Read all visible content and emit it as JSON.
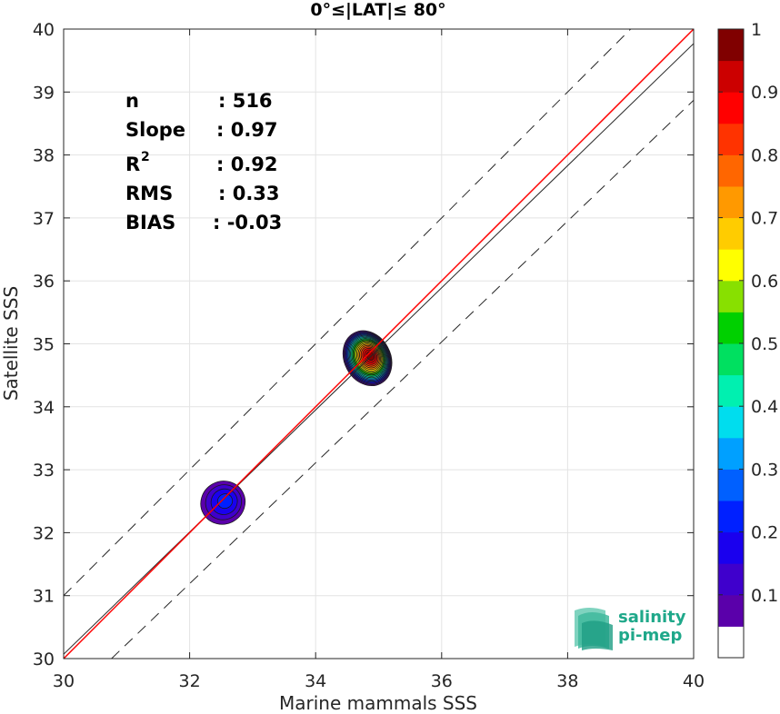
{
  "chart_data": {
    "type": "heatmap",
    "title": "0°≤|LAT|≤ 80°",
    "xlabel": "Marine mammals SSS",
    "ylabel": "Satellite SSS",
    "xlim": [
      30,
      40
    ],
    "ylim": [
      30,
      40
    ],
    "xticks": [
      "30",
      "32",
      "34",
      "36",
      "38",
      "40"
    ],
    "yticks": [
      "30",
      "31",
      "32",
      "33",
      "34",
      "35",
      "36",
      "37",
      "38",
      "39",
      "40"
    ],
    "grid": true,
    "stats": [
      {
        "label": "n",
        "value": ": 516"
      },
      {
        "label": "Slope",
        "value": ": 0.97"
      },
      {
        "label": "R",
        "sup": "2",
        "value": ": 0.92"
      },
      {
        "label": "RMS",
        "value": ": 0.33"
      },
      {
        "label": "BIAS",
        "value": ": -0.03"
      }
    ],
    "lines": {
      "identity": {
        "x": [
          30,
          40
        ],
        "y": [
          30,
          40
        ],
        "color": "#ff0000"
      },
      "regression": {
        "x": [
          30,
          40
        ],
        "y": [
          30.07,
          39.77
        ],
        "color": "#000000"
      },
      "identity_plus_one": {
        "x": [
          30,
          39
        ],
        "y": [
          31,
          40
        ],
        "style": "dashed"
      },
      "identity_minus_one": {
        "x": [
          30.76,
          40
        ],
        "y": [
          30,
          38.87
        ],
        "style": "dashed"
      }
    },
    "density_clusters": [
      {
        "center": [
          34.82,
          34.77
        ],
        "peak": 1.0,
        "spread_x": 0.38,
        "spread_y": 0.47,
        "rotation_deg": -28
      },
      {
        "center": [
          32.52,
          32.47
        ],
        "peak": 0.22,
        "spread_x": 0.42,
        "spread_y": 0.4,
        "rotation_deg": -30
      }
    ],
    "contour_levels": [
      0.05,
      0.1,
      0.15,
      0.2,
      0.25,
      0.3,
      0.35,
      0.4,
      0.45,
      0.5,
      0.55,
      0.6,
      0.65,
      0.7,
      0.75,
      0.8,
      0.85,
      0.9,
      0.95
    ],
    "colorbar": {
      "ticks": [
        "0.1",
        "0.2",
        "0.3",
        "0.4",
        "0.5",
        "0.6",
        "0.7",
        "0.8",
        "0.9",
        "1"
      ],
      "colors": [
        "#ffffff",
        "#5a00aa",
        "#3f00cc",
        "#1a00ee",
        "#0020ff",
        "#0060ff",
        "#00a0ff",
        "#00ddee",
        "#00f0b0",
        "#00e060",
        "#00d000",
        "#88e000",
        "#ffff00",
        "#ffcc00",
        "#ff9900",
        "#ff6600",
        "#ff3300",
        "#ff0000",
        "#cc0000",
        "#800000"
      ]
    }
  },
  "logo": {
    "line1": "salinity",
    "line2": "pi-mep",
    "color": "#1fa88a"
  }
}
